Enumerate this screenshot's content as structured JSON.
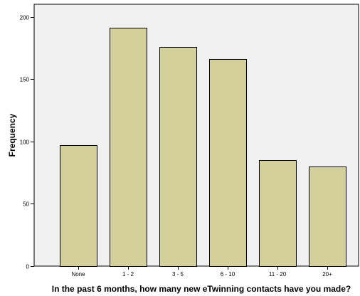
{
  "chart_data": {
    "type": "bar",
    "title": "",
    "xlabel": "In the past 6 months, how many new eTwinning contacts have you made?",
    "ylabel": "Frequency",
    "categories": [
      "None",
      "1 - 2",
      "3 - 5",
      "6 - 10",
      "11 - 20",
      "20+"
    ],
    "values": [
      97,
      191,
      176,
      166,
      85,
      80
    ],
    "ylim": [
      0,
      210
    ],
    "yticks": [
      0,
      50,
      100,
      150,
      200
    ],
    "grid": false,
    "legend": "none",
    "colors": {
      "plot_background": "#f0f0f0",
      "bar_fill": "#d4d09c",
      "bar_stroke": "#000000"
    }
  }
}
